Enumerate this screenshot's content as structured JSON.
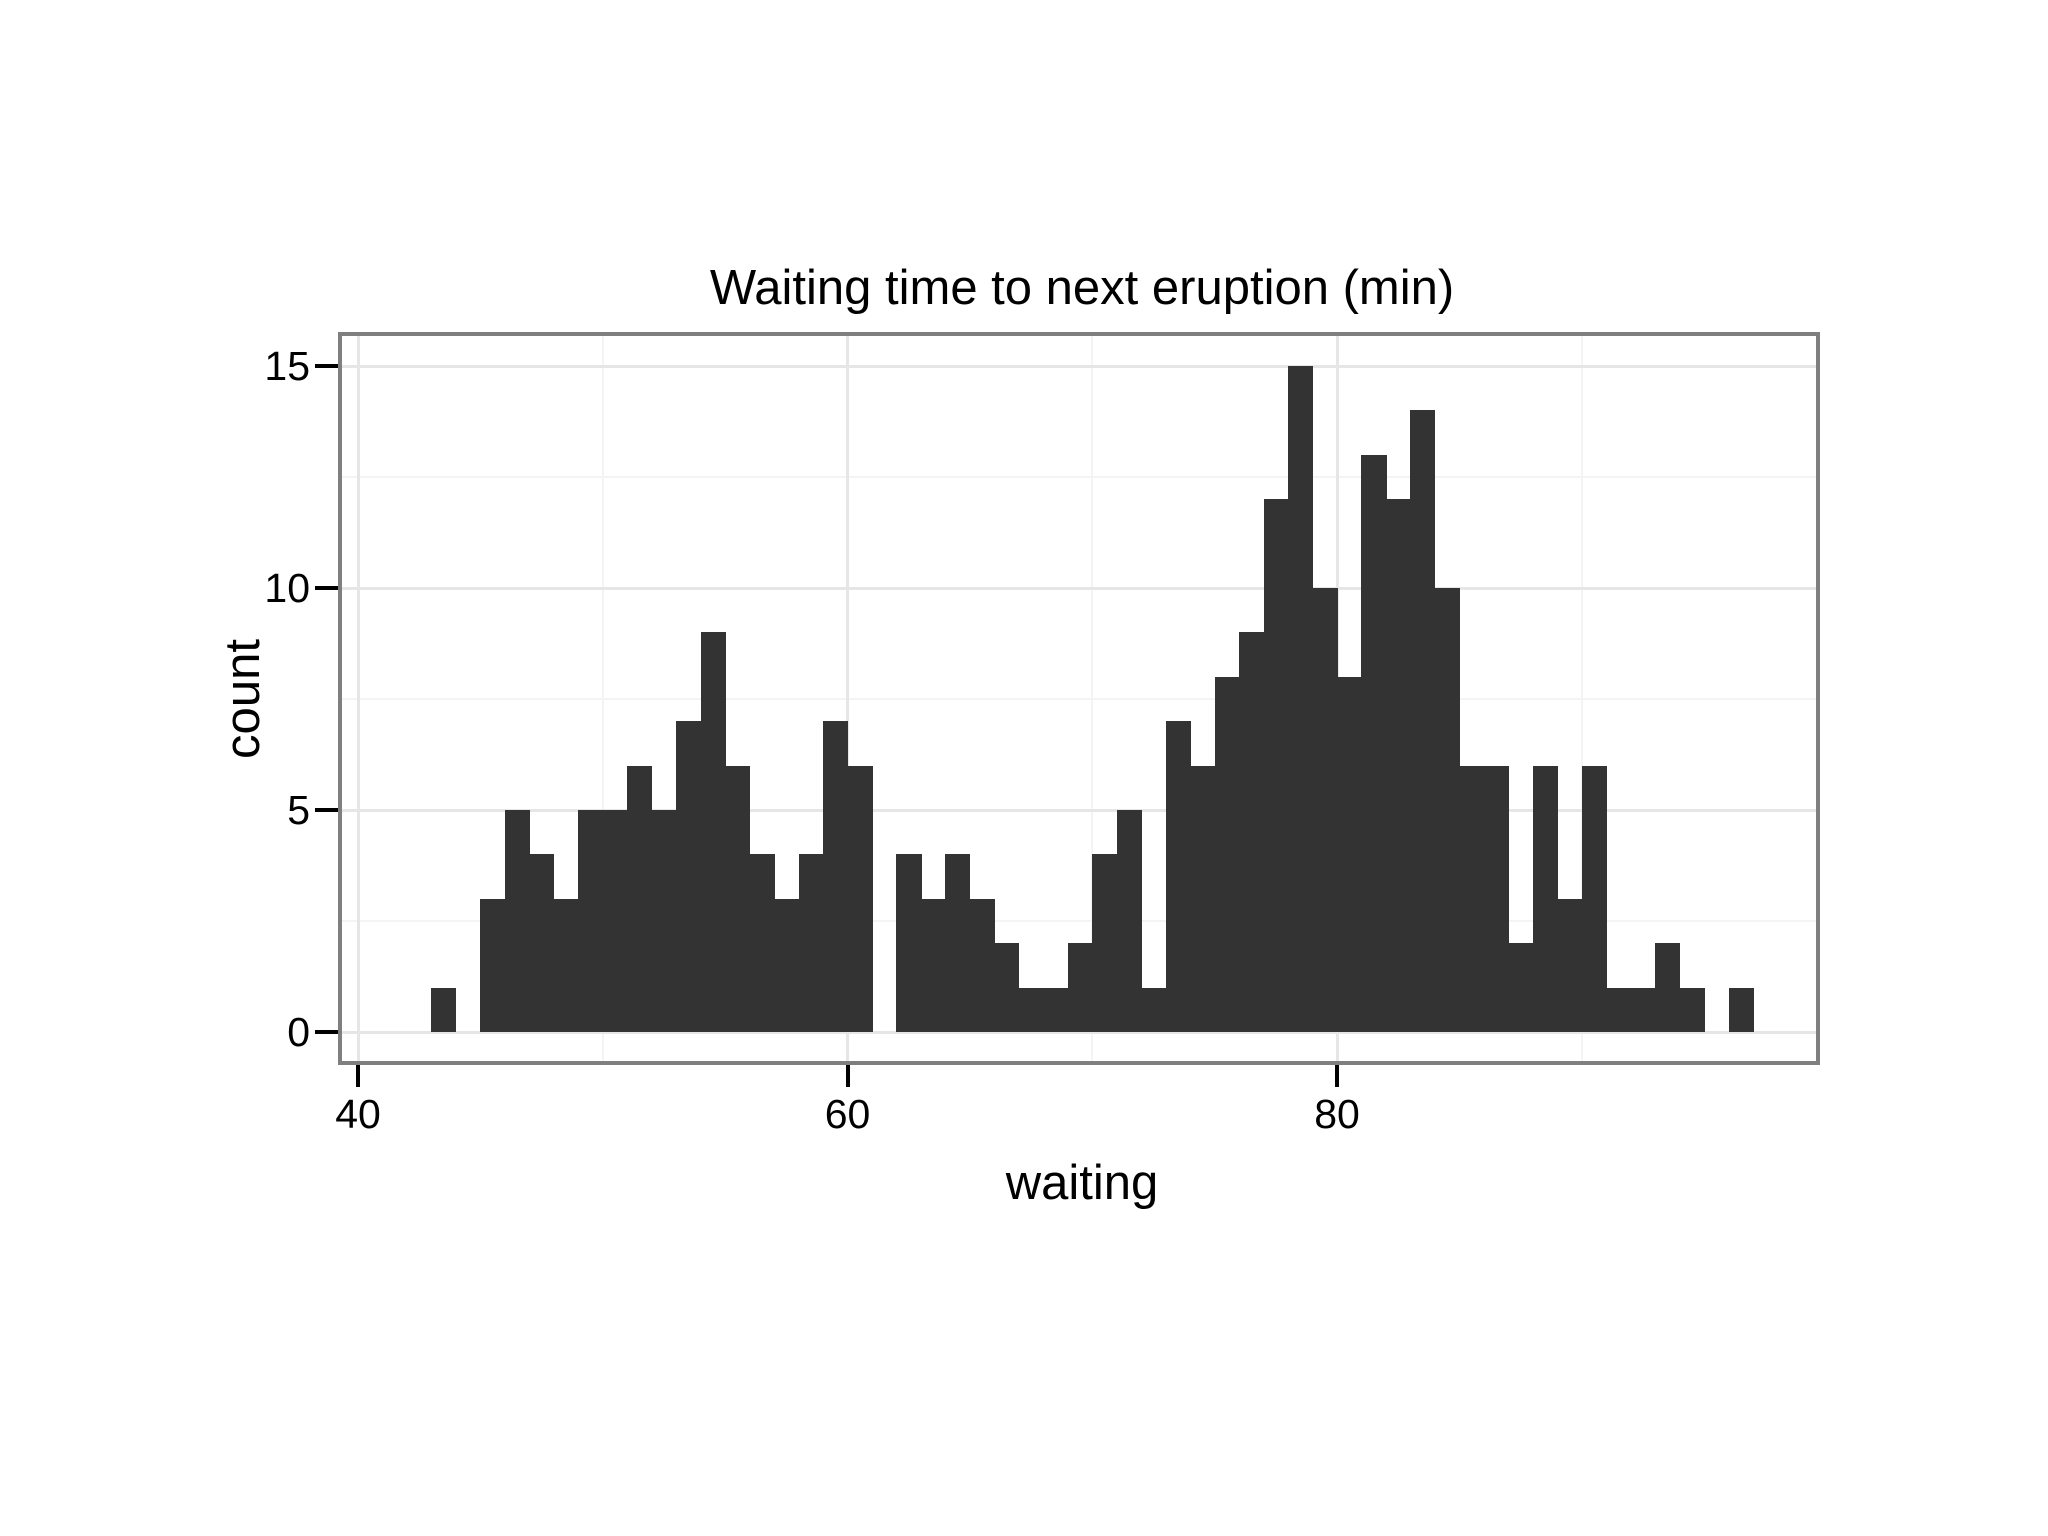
{
  "chart_data": {
    "type": "bar",
    "subtype": "histogram",
    "title": "Waiting time to next eruption (min)",
    "xlabel": "waiting",
    "ylabel": "count",
    "legend": "none",
    "grid": "major+minor",
    "x_tick_values": [
      40,
      60,
      80
    ],
    "x_tick_labels": [
      "40",
      "60",
      "80"
    ],
    "x_minor_values": [
      50,
      70,
      90
    ],
    "y_tick_values": [
      0,
      5,
      10,
      15
    ],
    "y_tick_labels": [
      "0",
      "5",
      "10",
      "15"
    ],
    "y_minor_values": [
      2.5,
      7.5,
      12.5
    ],
    "xlim": [
      39.3,
      99.7
    ],
    "ylim": [
      -0.75,
      15.77
    ],
    "binwidth": 1,
    "first_bin_start": 43,
    "bin_starts": [
      43,
      44,
      45,
      46,
      47,
      48,
      49,
      50,
      51,
      52,
      53,
      54,
      55,
      56,
      57,
      58,
      59,
      60,
      61,
      62,
      63,
      64,
      65,
      66,
      67,
      68,
      69,
      70,
      71,
      72,
      73,
      74,
      75,
      76,
      77,
      78,
      79,
      80,
      81,
      82,
      83,
      84,
      85,
      86,
      87,
      88,
      89,
      90,
      91,
      92,
      93,
      94,
      95,
      96
    ],
    "counts": [
      1,
      0,
      3,
      5,
      4,
      3,
      5,
      5,
      6,
      5,
      7,
      9,
      6,
      4,
      3,
      4,
      7,
      6,
      0,
      4,
      3,
      4,
      3,
      2,
      1,
      1,
      2,
      4,
      5,
      1,
      7,
      6,
      8,
      9,
      12,
      15,
      10,
      8,
      13,
      12,
      14,
      10,
      6,
      6,
      2,
      6,
      3,
      6,
      1,
      1,
      2,
      1,
      0,
      1
    ],
    "total_observations": 272,
    "colors": {
      "bar_fill": "#333333",
      "panel_border": "#7f7f7f",
      "grid_major": "#e6e6e6",
      "grid_minor": "#f4f4f4",
      "text": "#000000",
      "tick": "#000000",
      "background": "#ffffff"
    }
  }
}
